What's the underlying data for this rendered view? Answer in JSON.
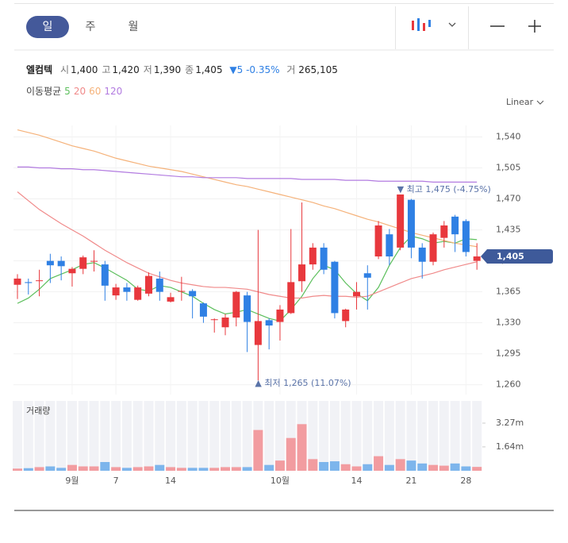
{
  "tabs": [
    "일",
    "주",
    "월"
  ],
  "stock": {
    "name": "엘컴텍",
    "quote": [
      {
        "key": "시",
        "value": "1,400"
      },
      {
        "key": "고",
        "value": "1,420"
      },
      {
        "key": "저",
        "value": "1,390"
      },
      {
        "key": "종",
        "value": "1,405"
      }
    ],
    "change": "▼5 -0.35%",
    "volume_key": "거",
    "volume_value": "265,105"
  },
  "ma_title": "이동평균",
  "chart_data": {
    "type": "candlestick",
    "scale_label": "Linear",
    "grid": true,
    "categories": [
      null,
      null,
      null,
      null,
      null,
      "9월",
      null,
      null,
      null,
      "7",
      null,
      null,
      null,
      null,
      "14",
      null,
      null,
      null,
      null,
      null,
      null,
      null,
      null,
      null,
      "10월",
      null,
      null,
      null,
      null,
      null,
      null,
      "14",
      null,
      null,
      null,
      null,
      "21",
      null,
      null,
      null,
      null,
      "28",
      null
    ],
    "open": [
      1373,
      1376,
      1378,
      1400,
      1400,
      1386,
      1391,
      1400,
      1396,
      1361,
      1370,
      1356,
      1363,
      1380,
      1354,
      1366,
      1366,
      1352,
      1334,
      1325,
      1336,
      1361,
      1305,
      1333,
      1331,
      1341,
      1377,
      1396,
      1415,
      1399,
      1332,
      1360,
      1386,
      1405,
      1430,
      1415,
      1469,
      1415,
      1399,
      1426,
      1450,
      1445,
      1400
    ],
    "high": [
      1385,
      1380,
      1390,
      1408,
      1405,
      1393,
      1406,
      1412,
      1400,
      1374,
      1375,
      1372,
      1387,
      1388,
      1364,
      1382,
      1368,
      1353,
      1335,
      1340,
      1366,
      1365,
      1435,
      1335,
      1350,
      1436,
      1466,
      1420,
      1420,
      1400,
      1346,
      1376,
      1395,
      1445,
      1436,
      1475,
      1470,
      1420,
      1432,
      1445,
      1452,
      1447,
      1420
    ],
    "low": [
      1357,
      1362,
      1360,
      1375,
      1378,
      1371,
      1385,
      1388,
      1355,
      1356,
      1355,
      1355,
      1360,
      1355,
      1353,
      1355,
      1335,
      1330,
      1319,
      1316,
      1326,
      1297,
      1265,
      1300,
      1310,
      1340,
      1365,
      1390,
      1385,
      1335,
      1325,
      1345,
      1345,
      1402,
      1395,
      1412,
      1403,
      1380,
      1395,
      1415,
      1410,
      1405,
      1390
    ],
    "close": [
      1380,
      1375,
      1378,
      1395,
      1394,
      1391,
      1404,
      1400,
      1372,
      1370,
      1365,
      1370,
      1383,
      1365,
      1359,
      1366,
      1360,
      1337,
      1334,
      1336,
      1365,
      1331,
      1332,
      1327,
      1345,
      1376,
      1396,
      1415,
      1390,
      1341,
      1345,
      1365,
      1381,
      1440,
      1405,
      1475,
      1415,
      1399,
      1430,
      1440,
      1430,
      1410,
      1405
    ],
    "up_color": "#e8383d",
    "down_color": "#2f80e4",
    "series": [
      {
        "name": "5",
        "color": "#5cbf5c",
        "values": [
          1352,
          1358,
          1368,
          1380,
          1385,
          1390,
          1396,
          1398,
          1392,
          1385,
          1378,
          1368,
          1366,
          1372,
          1370,
          1365,
          1360,
          1352,
          1345,
          1340,
          1342,
          1345,
          1340,
          1335,
          1332,
          1345,
          1360,
          1380,
          1395,
          1390,
          1375,
          1363,
          1355,
          1370,
          1395,
          1415,
          1428,
          1425,
          1420,
          1422,
          1420,
          1425,
          1424
        ]
      },
      {
        "name": "20",
        "color": "#f08a8a",
        "values": [
          1478,
          1468,
          1458,
          1450,
          1442,
          1435,
          1428,
          1420,
          1412,
          1405,
          1398,
          1392,
          1386,
          1382,
          1378,
          1375,
          1373,
          1371,
          1370,
          1370,
          1369,
          1368,
          1365,
          1362,
          1360,
          1358,
          1358,
          1360,
          1361,
          1360,
          1360,
          1359,
          1360,
          1365,
          1370,
          1375,
          1380,
          1383,
          1386,
          1390,
          1393,
          1396,
          1399
        ]
      },
      {
        "name": "60",
        "color": "#f5b27a",
        "values": [
          1548,
          1545,
          1542,
          1538,
          1534,
          1530,
          1527,
          1524,
          1520,
          1516,
          1513,
          1510,
          1507,
          1505,
          1503,
          1501,
          1498,
          1495,
          1492,
          1489,
          1486,
          1484,
          1481,
          1478,
          1475,
          1472,
          1469,
          1466,
          1462,
          1459,
          1455,
          1451,
          1447,
          1444,
          1440,
          1436,
          1432,
          1429,
          1426,
          1423,
          1420,
          1418,
          1416
        ]
      },
      {
        "name": "120",
        "color": "#b27be0",
        "values": [
          1506,
          1506,
          1505,
          1505,
          1504,
          1504,
          1503,
          1503,
          1502,
          1501,
          1500,
          1499,
          1498,
          1497,
          1496,
          1495,
          1495,
          1494,
          1494,
          1494,
          1494,
          1493,
          1493,
          1493,
          1493,
          1493,
          1492,
          1492,
          1492,
          1492,
          1491,
          1491,
          1491,
          1490,
          1490,
          1490,
          1490,
          1490,
          1489,
          1489,
          1489,
          1489,
          1489
        ]
      }
    ],
    "ylim": [
      1249,
      1553
    ],
    "yticks": [
      {
        "value": 1260,
        "label": "1,260"
      },
      {
        "value": 1295,
        "label": "1,295"
      },
      {
        "value": 1330,
        "label": "1,330"
      },
      {
        "value": 1365,
        "label": "1,365"
      },
      {
        "value": 1400,
        "label": "1,400"
      },
      {
        "value": 1435,
        "label": "1,435"
      },
      {
        "value": 1470,
        "label": "1,470"
      },
      {
        "value": 1505,
        "label": "1,505"
      },
      {
        "value": 1540,
        "label": "1,540"
      }
    ],
    "current": {
      "value": 1405,
      "label": "1,405"
    },
    "annotations": [
      {
        "kind": "high",
        "value": 1475,
        "label": "▼ 최고 1,475 (-4.75%)"
      },
      {
        "kind": "low",
        "value": 1265,
        "label": "▲ 최저 1,265 (11.07%)"
      }
    ],
    "volume": {
      "title": "거래량",
      "up_color": "#f29ca0",
      "down_color": "#7db5ec",
      "values": [
        150000,
        180000,
        250000,
        300000,
        200000,
        400000,
        300000,
        300000,
        600000,
        250000,
        200000,
        250000,
        300000,
        400000,
        250000,
        200000,
        200000,
        200000,
        200000,
        250000,
        250000,
        250000,
        2800000,
        400000,
        700000,
        2250000,
        3200000,
        800000,
        600000,
        650000,
        450000,
        300000,
        450000,
        1000000,
        400000,
        800000,
        700000,
        500000,
        400000,
        350000,
        500000,
        300000,
        265105
      ],
      "ylim": [
        0,
        4796000
      ],
      "yticks": [
        {
          "value": 1640000,
          "label": "1.64m"
        },
        {
          "value": 3270000,
          "label": "3.27m"
        }
      ]
    }
  }
}
